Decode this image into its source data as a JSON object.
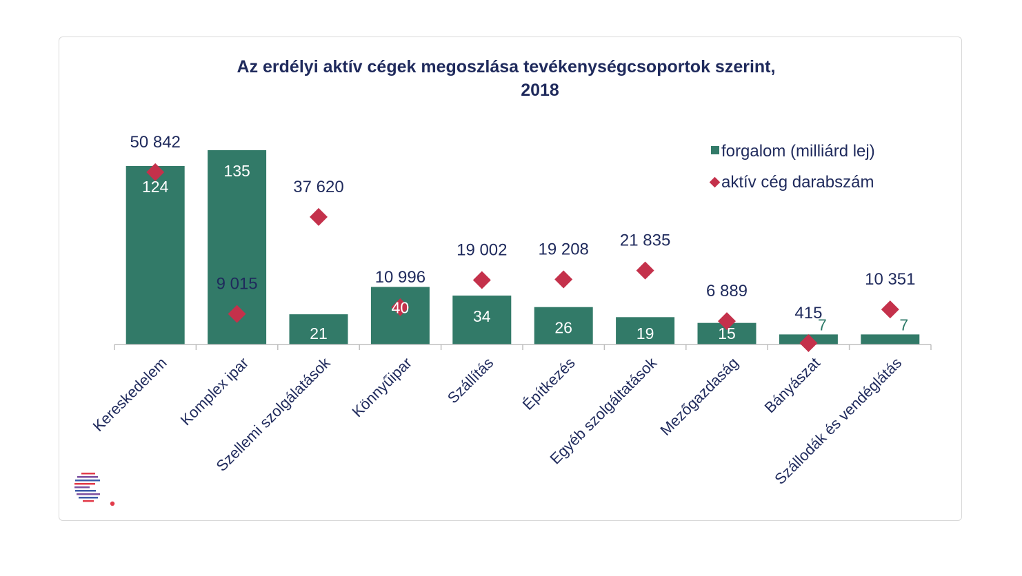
{
  "colors": {
    "bar": "#327a68",
    "marker": "#c4314b",
    "text": "#1f2a5c",
    "axis": "#bfbfbf"
  },
  "chart_data": {
    "type": "bar",
    "title": "Az erdélyi  aktív  cégek  megoszlása  tevékenységcsoportok  szerint,",
    "subtitle": "2018",
    "categories": [
      "Kereskedelem",
      "Komplex ipar",
      "Szellemi szolgálatások",
      "Könnyűipar",
      "Szállítás",
      "Építkezés",
      "Egyéb szolgáltatások",
      "Mezőgazdaság",
      "Bányászat",
      "Szállodák és vendéglátás"
    ],
    "series": [
      {
        "name": "forgalom (milliárd lej)",
        "type": "bar",
        "axis": "primary",
        "values": [
          124,
          135,
          21,
          40,
          34,
          26,
          19,
          15,
          7,
          7
        ],
        "labels": [
          "124",
          "135",
          "21",
          "40",
          "34",
          "26",
          "19",
          "15",
          "7",
          "7"
        ]
      },
      {
        "name": "aktív cég darabszám",
        "type": "scatter",
        "axis": "secondary",
        "values": [
          50842,
          9015,
          37620,
          10996,
          19002,
          19208,
          21835,
          6889,
          415,
          10351
        ],
        "labels": [
          "50 842",
          "9 015",
          "37 620",
          "10 996",
          "19 002",
          "19 208",
          "21 835",
          "6 889",
          "415",
          "10 351"
        ]
      }
    ],
    "ylim": [
      0,
      135
    ],
    "y2lim": [
      0,
      62000
    ],
    "legend": "top-right",
    "grid": false
  }
}
